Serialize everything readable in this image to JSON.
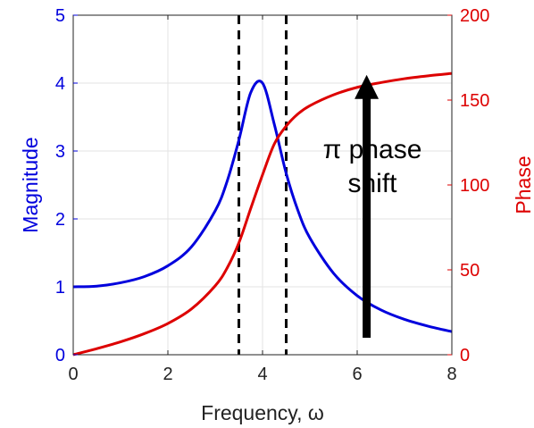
{
  "chart_data": {
    "type": "line",
    "xlabel": "Frequency, ω",
    "ylabel_left": "Magnitude",
    "ylabel_right": "Phase",
    "xlim": [
      0,
      8
    ],
    "ylim_left": [
      0,
      5
    ],
    "ylim_right": [
      0,
      200
    ],
    "x_ticks": [
      "0",
      "2",
      "4",
      "6",
      "8"
    ],
    "y_left_ticks": [
      "0",
      "1",
      "2",
      "3",
      "4",
      "5"
    ],
    "y_right_ticks": [
      "0",
      "50",
      "100",
      "150",
      "200"
    ],
    "grid": true,
    "colors": {
      "magnitude": "#0000dd",
      "phase": "#dd0000",
      "annotation": "#000000"
    },
    "series": [
      {
        "axis": "left",
        "x": [
          0,
          0.5,
          1,
          1.5,
          2,
          2.5,
          3,
          3.25,
          3.5,
          3.75,
          4,
          4.25,
          4.5,
          4.75,
          5,
          5.5,
          6,
          6.5,
          7,
          7.5,
          8
        ],
        "values": [
          1.0,
          1.01,
          1.06,
          1.15,
          1.31,
          1.59,
          2.12,
          2.55,
          3.16,
          3.86,
          4.0,
          3.39,
          2.67,
          2.12,
          1.72,
          1.2,
          0.87,
          0.66,
          0.52,
          0.42,
          0.34
        ]
      },
      {
        "axis": "right",
        "x": [
          0,
          0.5,
          1,
          1.5,
          2,
          2.5,
          3,
          3.25,
          3.5,
          3.75,
          4,
          4.25,
          4.5,
          4.75,
          5,
          5.5,
          6,
          6.5,
          7,
          7.5,
          8
        ],
        "values": [
          0,
          3.6,
          7.6,
          12.4,
          18.4,
          27,
          40.6,
          51,
          65.9,
          86.1,
          106,
          124.2,
          134.7,
          141.9,
          146.7,
          153.1,
          157.5,
          160.3,
          162.6,
          164.3,
          165.7
        ]
      }
    ],
    "vlines": [
      3.5,
      4.5
    ],
    "annotation": {
      "line1": "π phase",
      "line2": "shift",
      "arrow_x": 6.2,
      "arrow_from": 10,
      "arrow_to": 153
    }
  }
}
